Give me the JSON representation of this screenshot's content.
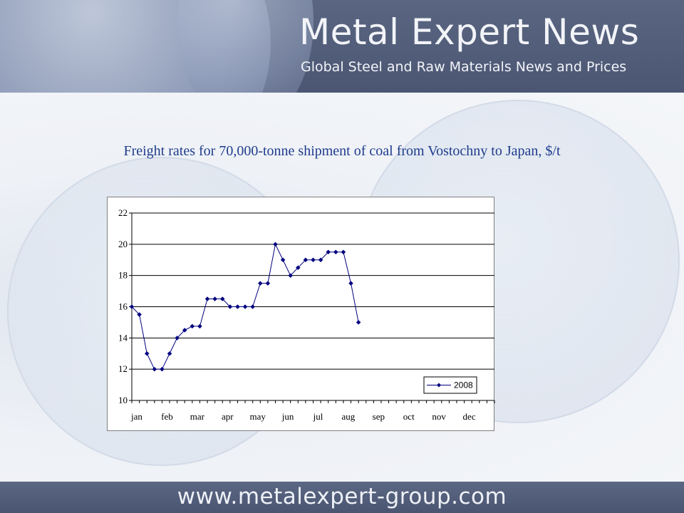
{
  "header": {
    "brand_title": "Metal Expert News",
    "brand_subtitle": "Global Steel and Raw Materials News and Prices"
  },
  "footer": {
    "url": "www.metalexpert-group.com"
  },
  "colors": {
    "series": "#000080",
    "title": "#1f3c8c",
    "header_bg": "#4b5673"
  },
  "chart_data": {
    "type": "line",
    "title": "Freight rates for 70,000-tonne shipment of coal from Vostochny to Japan, $/t",
    "xlabel": "",
    "ylabel": "",
    "ylim": [
      10,
      22
    ],
    "yticks": [
      10,
      12,
      14,
      16,
      18,
      20,
      22
    ],
    "x_range": [
      0,
      48
    ],
    "month_labels": [
      "jan",
      "feb",
      "mar",
      "apr",
      "may",
      "jun",
      "jul",
      "aug",
      "sep",
      "oct",
      "nov",
      "dec"
    ],
    "grid": true,
    "legend_position": "bottom-right",
    "series": [
      {
        "name": "2008",
        "values": [
          16,
          15.5,
          13,
          12,
          12,
          13,
          14,
          14.5,
          14.75,
          14.75,
          16.5,
          16.5,
          16.5,
          16,
          16,
          16,
          16,
          17.5,
          17.5,
          20,
          19,
          18,
          18.5,
          19,
          19,
          19,
          19.5,
          19.5,
          19.5,
          17.5,
          15
        ]
      }
    ]
  }
}
